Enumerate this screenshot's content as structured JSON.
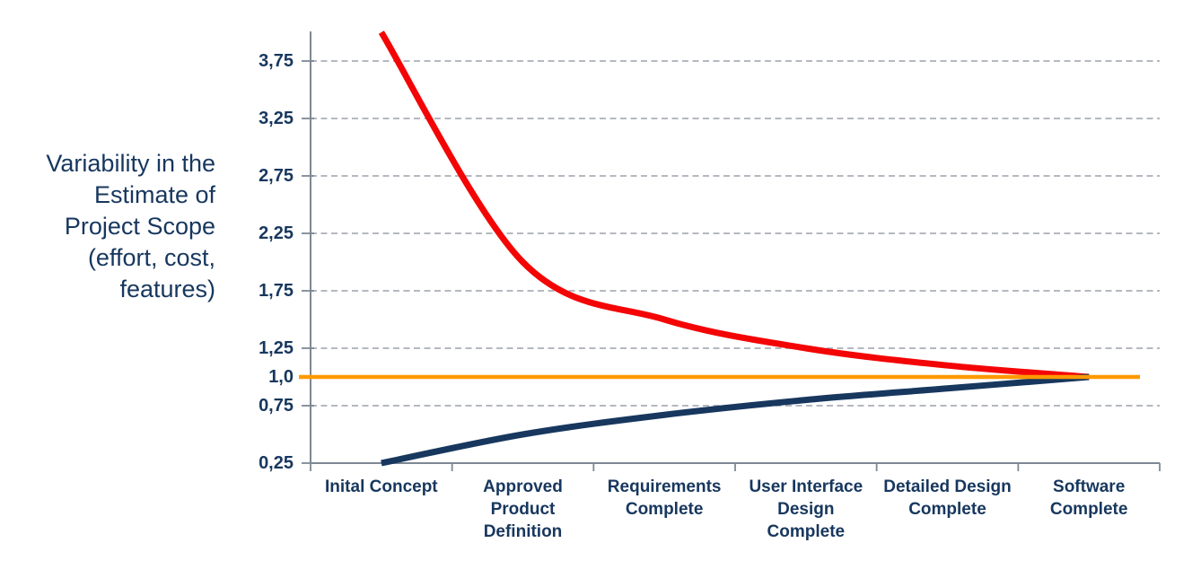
{
  "title_block": {
    "text": "Variability in the\nEstimate of\nProject Scope\n(effort, cost,\nfeatures)"
  },
  "chart_data": {
    "type": "line",
    "title": "",
    "xlabel": "",
    "ylabel": "Variability in the Estimate of Project Scope (effort, cost, features)",
    "categories": [
      "Inital Concept",
      "Approved Product Definition",
      "Requirements Complete",
      "User Interface Design Complete",
      "Detailed Design Complete",
      "Software Complete"
    ],
    "series": [
      {
        "name": "upper-variability-bound",
        "color": "#F40505",
        "stroke_width": 7,
        "smooth": true,
        "values": [
          4.0,
          2.0,
          1.5,
          1.25,
          1.1,
          1.0
        ]
      },
      {
        "name": "lower-variability-bound",
        "color": "#17375E",
        "stroke_width": 7,
        "smooth": true,
        "values": [
          0.25,
          0.5,
          0.67,
          0.8,
          0.9,
          1.0
        ]
      }
    ],
    "reference_line": {
      "name": "convergence-baseline",
      "value": 1.0,
      "color": "#FF9900",
      "stroke_width": 4.5
    },
    "y_axis": {
      "tick_labels": [
        "3,75",
        "3,25",
        "2,75",
        "2,25",
        "1,75",
        "1,25",
        "1,0",
        "0,75",
        "0,25"
      ],
      "tick_values": [
        3.75,
        3.25,
        2.75,
        2.25,
        1.75,
        1.25,
        1.0,
        0.75,
        0.25
      ],
      "gridline_values": [
        3.75,
        3.25,
        2.75,
        2.25,
        1.75,
        1.25,
        0.75
      ],
      "range": [
        0.25,
        4.0
      ],
      "decimal_separator": ","
    },
    "x_axis": {
      "boundary_tick_count": 7
    },
    "grid": "horizontal-dashed",
    "legend": "none",
    "styles": {
      "axis_color": "#7E8894",
      "gridline_color": "#A9AEB7",
      "label_color": "#17375E"
    }
  }
}
